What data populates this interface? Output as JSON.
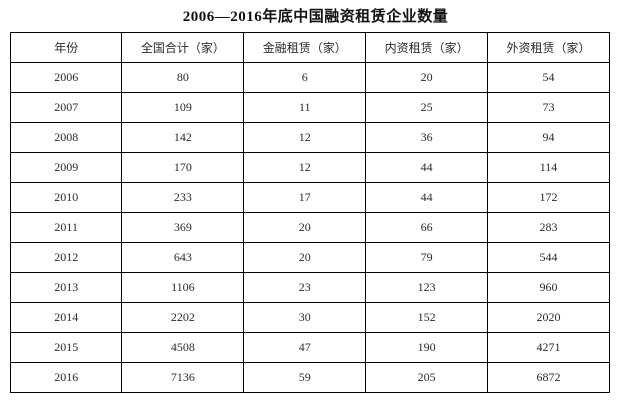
{
  "title": "2006—2016年底中国融资租赁企业数量",
  "colors": {
    "background": "#ffffff",
    "border": "#000000",
    "title_text": "#111111",
    "cell_text": "#2b2b2b"
  },
  "chart_data": {
    "type": "table",
    "title": "2006—2016年底中国融资租赁企业数量",
    "columns": [
      "年份",
      "全国合计（家）",
      "金融租赁（家）",
      "内资租赁（家）",
      "外资租赁（家）"
    ],
    "rows": [
      [
        "2006",
        "80",
        "6",
        "20",
        "54"
      ],
      [
        "2007",
        "109",
        "11",
        "25",
        "73"
      ],
      [
        "2008",
        "142",
        "12",
        "36",
        "94"
      ],
      [
        "2009",
        "170",
        "12",
        "44",
        "114"
      ],
      [
        "2010",
        "233",
        "17",
        "44",
        "172"
      ],
      [
        "2011",
        "369",
        "20",
        "66",
        "283"
      ],
      [
        "2012",
        "643",
        "20",
        "79",
        "544"
      ],
      [
        "2013",
        "1106",
        "23",
        "123",
        "960"
      ],
      [
        "2014",
        "2202",
        "30",
        "152",
        "2020"
      ],
      [
        "2015",
        "4508",
        "47",
        "190",
        "4271"
      ],
      [
        "2016",
        "7136",
        "59",
        "205",
        "6872"
      ]
    ]
  }
}
